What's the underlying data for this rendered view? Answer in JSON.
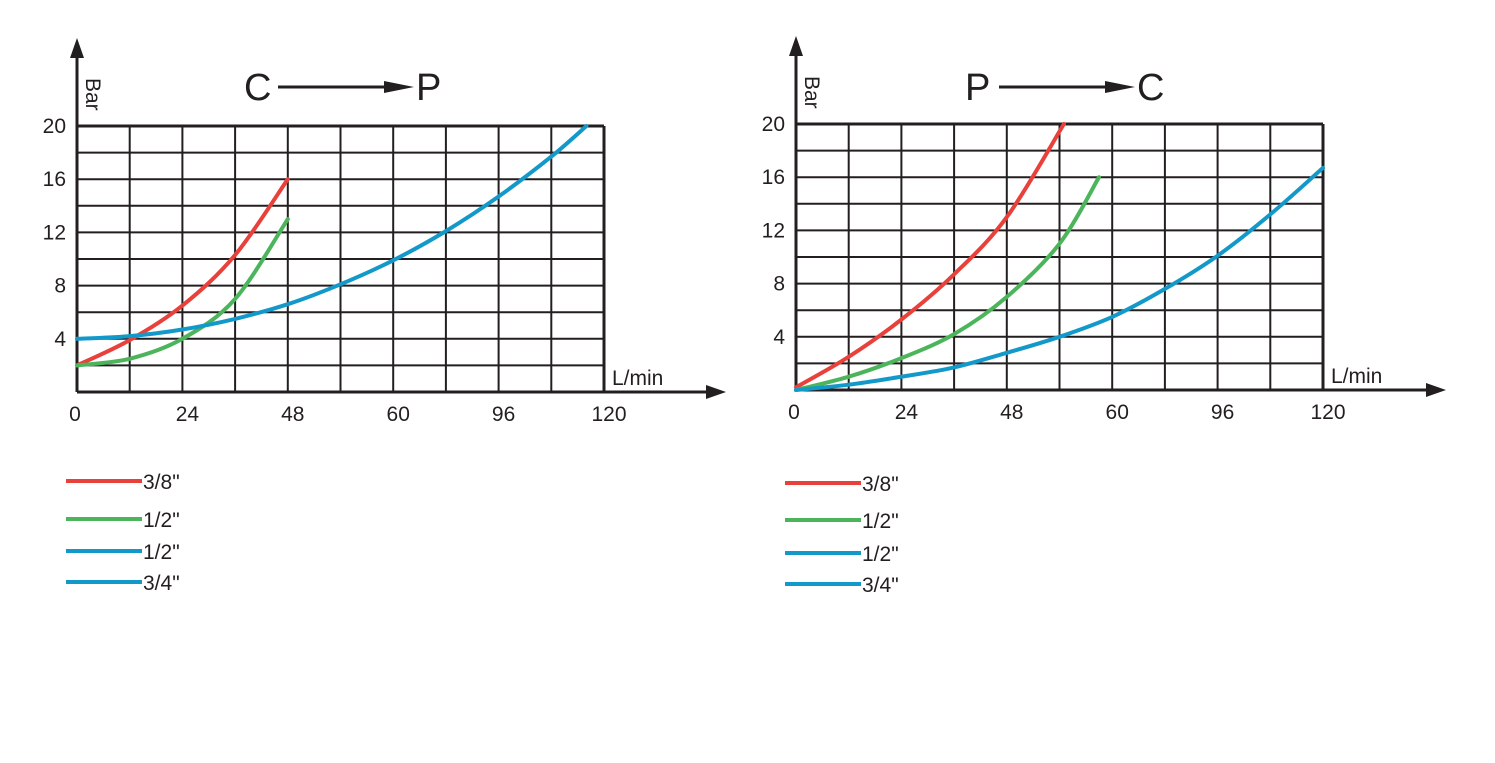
{
  "colors": {
    "axis": "#231f20",
    "grid": "#231f20",
    "red": "#e8413c",
    "green": "#4cb55b",
    "blue": "#1399c9"
  },
  "chart_data": [
    {
      "type": "line",
      "direction": {
        "from": "C",
        "to": "P"
      },
      "xlabel": "L/min",
      "ylabel": "Bar",
      "x_ticks": [
        "0",
        "24",
        "48",
        "60",
        "96",
        "120"
      ],
      "y_ticks": [
        "4",
        "8",
        "12",
        "16",
        "20"
      ],
      "xlim": [
        0,
        120
      ],
      "ylim": [
        0,
        20
      ],
      "grid": true,
      "legend": "below-left",
      "series": [
        {
          "name": "3/8\"",
          "color": "red",
          "x": [
            0,
            12,
            24,
            36,
            48
          ],
          "y": [
            2,
            3.9,
            6.5,
            10.3,
            16
          ]
        },
        {
          "name": "1/2\"",
          "color": "green",
          "x": [
            0,
            12,
            24,
            36,
            48
          ],
          "y": [
            2,
            2.5,
            4,
            7,
            13
          ]
        },
        {
          "name": "1/2\"",
          "color": "blue",
          "x": [],
          "y": []
        },
        {
          "name": "3/4\"",
          "color": "blue",
          "x": [
            0,
            12,
            24,
            36,
            48,
            60,
            72,
            84,
            96,
            108,
            116
          ],
          "y": [
            4,
            4.2,
            4.7,
            5.5,
            6.6,
            8.1,
            9.9,
            12.1,
            14.7,
            17.7,
            20
          ]
        }
      ]
    },
    {
      "type": "line",
      "direction": {
        "from": "P",
        "to": "C"
      },
      "xlabel": "L/min",
      "ylabel": "Bar",
      "x_ticks": [
        "0",
        "24",
        "48",
        "60",
        "96",
        "120"
      ],
      "y_ticks": [
        "4",
        "8",
        "12",
        "16",
        "20"
      ],
      "xlim": [
        0,
        120
      ],
      "ylim": [
        0,
        20
      ],
      "grid": true,
      "legend": "below-left",
      "series": [
        {
          "name": "3/8\"",
          "color": "red",
          "x": [
            0,
            12,
            24,
            36,
            48,
            61
          ],
          "y": [
            0.2,
            2.5,
            5.3,
            8.7,
            13,
            20
          ]
        },
        {
          "name": "1/2\"",
          "color": "green",
          "x": [
            0,
            12,
            24,
            36,
            48,
            60,
            69
          ],
          "y": [
            0,
            1,
            2.4,
            4.2,
            7,
            11,
            16
          ]
        },
        {
          "name": "1/2\"",
          "color": "blue",
          "x": [],
          "y": []
        },
        {
          "name": "3/4\"",
          "color": "blue",
          "x": [
            0,
            12,
            24,
            36,
            48,
            60,
            72,
            84,
            96,
            108,
            120
          ],
          "y": [
            0,
            0.4,
            1,
            1.7,
            2.8,
            4,
            5.5,
            7.6,
            10.1,
            13.2,
            16.7
          ]
        }
      ]
    }
  ]
}
